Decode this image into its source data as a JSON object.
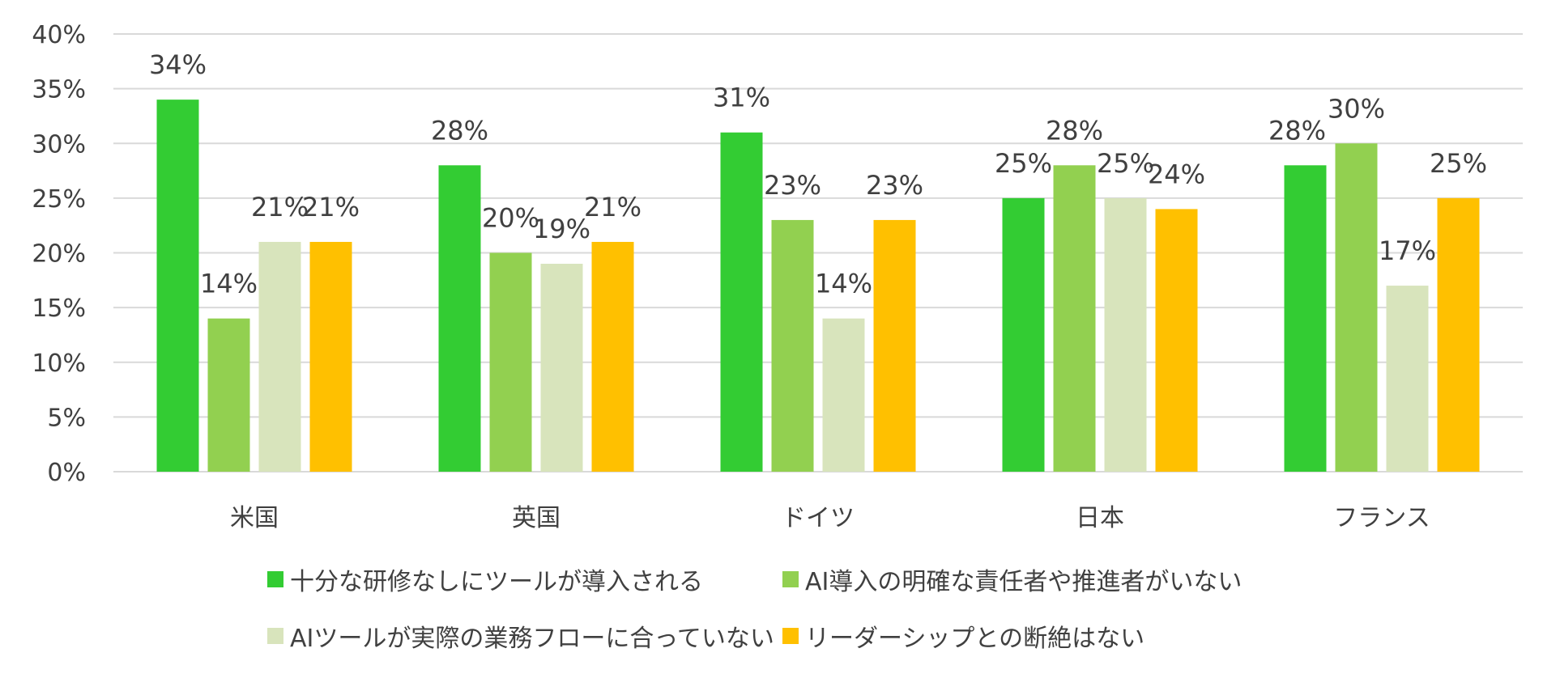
{
  "chart_data": {
    "type": "bar",
    "title": "",
    "xlabel": "",
    "ylabel": "",
    "ylim": [
      0,
      40
    ],
    "ytick_step": 5,
    "ytick_suffix": "%",
    "grid": true,
    "legend_position": "bottom",
    "categories": [
      "米国",
      "英国",
      "ドイツ",
      "日本",
      "フランス"
    ],
    "series": [
      {
        "name": "十分な研修なしにツールが導入される",
        "color": "#33cc33",
        "values": [
          34,
          28,
          31,
          25,
          28
        ]
      },
      {
        "name": "AI導入の明確な責任者や推進者がいない",
        "color": "#92d050",
        "values": [
          14,
          20,
          23,
          28,
          30
        ]
      },
      {
        "name": "AIツールが実際の業務フローに合っていない",
        "color": "#d8e4bc",
        "values": [
          21,
          19,
          14,
          25,
          17
        ]
      },
      {
        "name": "リーダーシップとの断絶はない",
        "color": "#ffc000",
        "values": [
          21,
          21,
          23,
          24,
          25
        ]
      }
    ]
  }
}
